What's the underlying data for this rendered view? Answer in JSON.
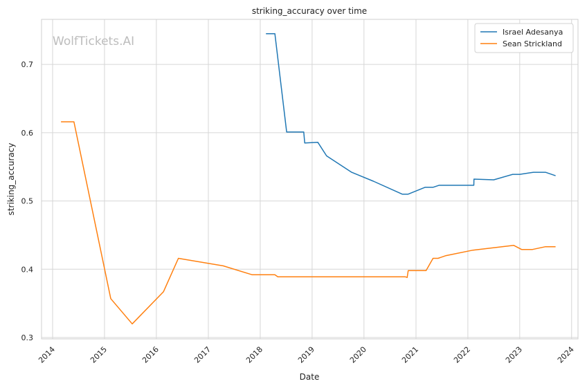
{
  "watermark": "WolfTickets.AI",
  "chart_data": {
    "type": "line",
    "title": "striking_accuracy over time",
    "xlabel": "Date",
    "ylabel": "striking_accuracy",
    "xlim": [
      "2013-10-15",
      "2024-02-15"
    ],
    "ylim": [
      0.298,
      0.766
    ],
    "x_ticks": [
      "2014",
      "2015",
      "2016",
      "2017",
      "2018",
      "2019",
      "2020",
      "2021",
      "2022",
      "2023",
      "2024"
    ],
    "y_ticks": [
      "0.3",
      "0.4",
      "0.5",
      "0.6",
      "0.7"
    ],
    "grid": true,
    "legend_position": "top-right",
    "colors": {
      "Israel Adesanya": "#1f77b4",
      "Sean Strickland": "#ff7f0e"
    },
    "series": [
      {
        "name": "Israel Adesanya",
        "points": [
          [
            "2018-02-10",
            0.745
          ],
          [
            "2018-04-14",
            0.745
          ],
          [
            "2018-07-06",
            0.601
          ],
          [
            "2018-11-03",
            0.601
          ],
          [
            "2018-11-10",
            0.585
          ],
          [
            "2019-02-10",
            0.586
          ],
          [
            "2019-04-13",
            0.566
          ],
          [
            "2019-10-06",
            0.542
          ],
          [
            "2020-03-07",
            0.529
          ],
          [
            "2020-09-26",
            0.51
          ],
          [
            "2020-11-07",
            0.51
          ],
          [
            "2021-03-06",
            0.52
          ],
          [
            "2021-05-01",
            0.52
          ],
          [
            "2021-06-12",
            0.523
          ],
          [
            "2022-02-12",
            0.523
          ],
          [
            "2022-02-13",
            0.532
          ],
          [
            "2022-07-02",
            0.531
          ],
          [
            "2022-11-12",
            0.539
          ],
          [
            "2023-01-01",
            0.539
          ],
          [
            "2023-04-08",
            0.542
          ],
          [
            "2023-07-01",
            0.542
          ],
          [
            "2023-09-10",
            0.537
          ]
        ]
      },
      {
        "name": "Sean Strickland",
        "points": [
          [
            "2014-03-01",
            0.616
          ],
          [
            "2014-05-31",
            0.616
          ],
          [
            "2015-02-14",
            0.357
          ],
          [
            "2015-07-15",
            0.32
          ],
          [
            "2016-02-20",
            0.367
          ],
          [
            "2016-06-04",
            0.416
          ],
          [
            "2017-04-15",
            0.405
          ],
          [
            "2017-11-04",
            0.392
          ],
          [
            "2018-04-14",
            0.392
          ],
          [
            "2018-05-05",
            0.389
          ],
          [
            "2020-10-17",
            0.389
          ],
          [
            "2020-10-31",
            0.388
          ],
          [
            "2020-11-07",
            0.398
          ],
          [
            "2021-03-13",
            0.398
          ],
          [
            "2021-05-01",
            0.416
          ],
          [
            "2021-06-05",
            0.416
          ],
          [
            "2021-07-31",
            0.42
          ],
          [
            "2022-02-05",
            0.428
          ],
          [
            "2022-11-20",
            0.435
          ],
          [
            "2023-01-14",
            0.429
          ],
          [
            "2023-04-01",
            0.429
          ],
          [
            "2023-07-01",
            0.433
          ],
          [
            "2023-09-10",
            0.433
          ]
        ]
      }
    ]
  }
}
